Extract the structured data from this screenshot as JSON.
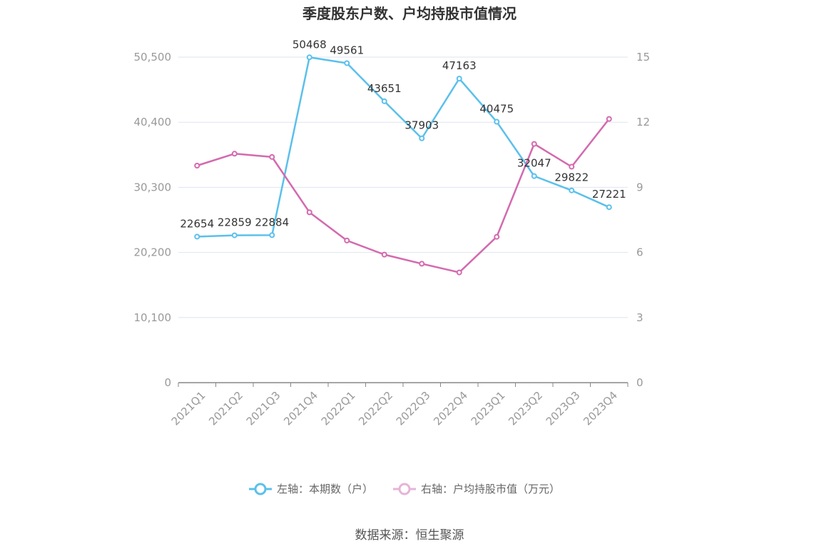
{
  "chart_data": {
    "type": "line",
    "title": "季度股东户数、户均持股市值情况",
    "categories": [
      "2021Q1",
      "2021Q2",
      "2021Q3",
      "2021Q4",
      "2022Q1",
      "2022Q2",
      "2022Q3",
      "2022Q4",
      "2023Q1",
      "2023Q2",
      "2023Q3",
      "2023Q4"
    ],
    "left_axis": {
      "ticks": [
        "0",
        "10,100",
        "20,200",
        "30,300",
        "40,400",
        "50,500"
      ],
      "ylim": [
        0,
        50500
      ]
    },
    "right_axis": {
      "ticks": [
        "0",
        "3",
        "6",
        "9",
        "12",
        "15"
      ],
      "ylim": [
        0,
        15
      ]
    },
    "series": [
      {
        "name": "左轴：本期数（户）",
        "axis": "left",
        "color": "#5bc0eb",
        "values": [
          22654,
          22859,
          22884,
          50468,
          49561,
          43651,
          37903,
          47163,
          40475,
          32047,
          29822,
          27221
        ],
        "labels": [
          "22654",
          "22859",
          "22884",
          "50468",
          "49561",
          "43651",
          "37903",
          "47163",
          "40475",
          "32047",
          "29822",
          "27221"
        ]
      },
      {
        "name": "右轴：户均持股市值（万元）",
        "axis": "right",
        "color": "#d36aae",
        "values": [
          10.0,
          10.55,
          10.4,
          7.85,
          6.55,
          5.9,
          5.48,
          5.08,
          6.72,
          11.0,
          9.95,
          12.15
        ]
      }
    ],
    "grid": true,
    "legend_position": "bottom-center"
  },
  "source": "数据来源：恒生聚源"
}
